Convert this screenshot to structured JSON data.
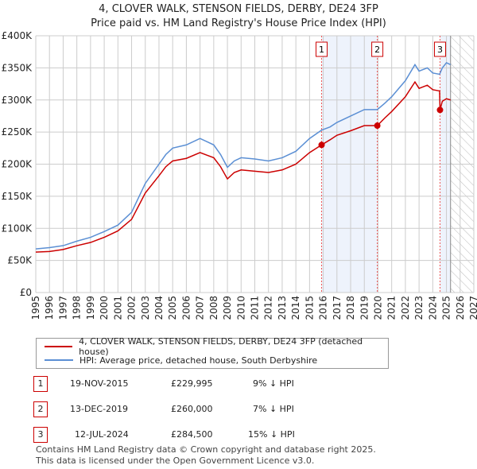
{
  "chart_data": {
    "type": "line",
    "title": "4, CLOVER WALK, STENSON FIELDS, DERBY, DE24 3FP",
    "subtitle": "Price paid vs. HM Land Registry's House Price Index (HPI)",
    "xlim": [
      1995,
      2027
    ],
    "ylim": [
      0,
      400000
    ],
    "xticks": [
      "1995",
      "1996",
      "1997",
      "1998",
      "1999",
      "2000",
      "2001",
      "2002",
      "2003",
      "2004",
      "2005",
      "2006",
      "2007",
      "2008",
      "2009",
      "2010",
      "2011",
      "2012",
      "2013",
      "2014",
      "2015",
      "2016",
      "2017",
      "2018",
      "2019",
      "2020",
      "2021",
      "2022",
      "2023",
      "2024",
      "2025",
      "2026",
      "2027"
    ],
    "yticks": [
      {
        "v": 0,
        "label": "£0"
      },
      {
        "v": 50000,
        "label": "£50K"
      },
      {
        "v": 100000,
        "label": "£100K"
      },
      {
        "v": 150000,
        "label": "£150K"
      },
      {
        "v": 200000,
        "label": "£200K"
      },
      {
        "v": 250000,
        "label": "£250K"
      },
      {
        "v": 300000,
        "label": "£300K"
      },
      {
        "v": 350000,
        "label": "£350K"
      },
      {
        "v": 400000,
        "label": "£400K"
      }
    ],
    "grid": true,
    "forecast_start": 2025.3,
    "series": [
      {
        "name": "4, CLOVER WALK, STENSON FIELDS, DERBY, DE24 3FP (detached house)",
        "color": "#cc0000",
        "x": [
          1995,
          1996,
          1997,
          1998,
          1999,
          2000,
          2001,
          2002,
          2003,
          2004,
          2004.5,
          2005,
          2006,
          2007,
          2007.5,
          2008,
          2008.5,
          2009,
          2009.5,
          2010,
          2011,
          2012,
          2013,
          2014,
          2015,
          2015.88,
          2016.5,
          2017,
          2018,
          2019,
          2019.95,
          2020.5,
          2021,
          2022,
          2022.7,
          2023,
          2023.6,
          2024,
          2024.5,
          2024.53,
          2024.7,
          2025,
          2025.3
        ],
        "y": [
          63,
          64,
          67,
          73,
          78,
          86,
          96,
          114,
          155,
          182,
          196,
          205,
          209,
          218,
          214,
          210,
          196,
          177,
          187,
          191,
          189,
          187,
          191,
          200,
          218,
          230,
          238,
          245,
          252,
          260,
          260,
          272,
          282,
          305,
          328,
          318,
          323,
          316,
          314,
          284.5,
          298,
          302,
          300
        ]
      },
      {
        "name": "HPI: Average price, detached house, South Derbyshire",
        "color": "#5b8fd4",
        "x": [
          1995,
          1996,
          1997,
          1998,
          1999,
          2000,
          2001,
          2002,
          2003,
          2004,
          2004.5,
          2005,
          2006,
          2007,
          2007.5,
          2008,
          2008.5,
          2009,
          2009.5,
          2010,
          2011,
          2012,
          2013,
          2014,
          2015,
          2015.88,
          2016.5,
          2017,
          2018,
          2019,
          2019.95,
          2020.5,
          2021,
          2022,
          2022.7,
          2023,
          2023.6,
          2024,
          2024.5,
          2024.7,
          2025,
          2025.3
        ],
        "y": [
          68,
          70,
          73,
          80,
          86,
          95,
          105,
          125,
          170,
          200,
          215,
          225,
          230,
          240,
          235,
          230,
          215,
          195,
          205,
          210,
          208,
          205,
          210,
          220,
          240,
          253,
          258,
          265,
          275,
          285,
          285,
          295,
          305,
          330,
          355,
          345,
          350,
          342,
          340,
          350,
          358,
          355
        ]
      }
    ],
    "sales": [
      {
        "n": "1",
        "x": 2015.88,
        "date": "19-NOV-2015",
        "price": "£229,995",
        "value": 229995,
        "hpi": "9% ↓ HPI"
      },
      {
        "n": "2",
        "x": 2019.95,
        "date": "13-DEC-2019",
        "price": "£260,000",
        "value": 260000,
        "hpi": "7% ↓ HPI"
      },
      {
        "n": "3",
        "x": 2024.53,
        "date": "12-JUL-2024",
        "price": "£284,500",
        "value": 284500,
        "hpi": "15% ↓ HPI"
      }
    ]
  },
  "footer": [
    "Contains HM Land Registry data © Crown copyright and database right 2025.",
    "This data is licensed under the Open Government Licence v3.0."
  ]
}
